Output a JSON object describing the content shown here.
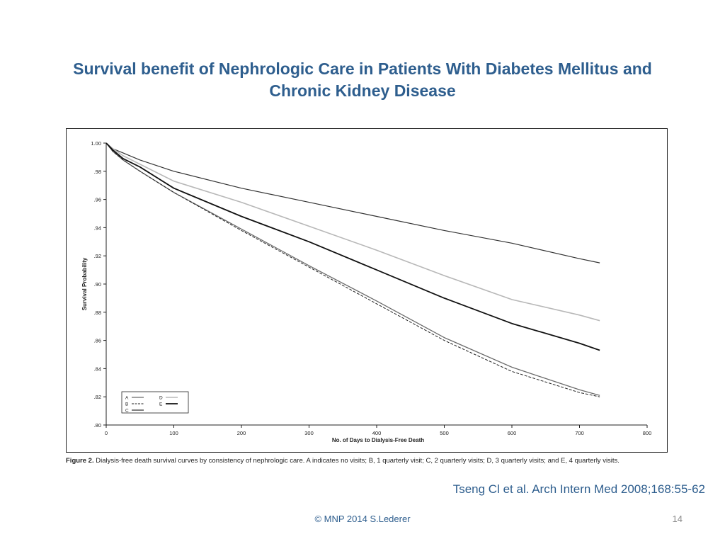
{
  "slide": {
    "title": "Survival benefit of Nephrologic Care in Patients With Diabetes Mellitus and Chronic Kidney Disease",
    "citation": "Tseng Cl et al. Arch Intern Med 2008;168:55-62",
    "footer": "© MNP 2014 S.Lederer",
    "page_number": "14"
  },
  "figure": {
    "caption_label": "Figure 2.",
    "caption_text": "Dialysis-free death survival curves by consistency of nephrologic care. A indicates no visits; B, 1 quarterly visit; C, 2 quarterly visits; D, 3 quarterly visits; and E, 4 quarterly visits."
  },
  "chart_data": {
    "type": "line",
    "xlabel": "No. of Days to Dialysis-Free Death",
    "ylabel": "Survival Probability",
    "xlim": [
      0,
      800
    ],
    "ylim": [
      0.8,
      1.0
    ],
    "x_ticks": [
      "0",
      "100",
      "200",
      "300",
      "400",
      "500",
      "600",
      "700",
      "800"
    ],
    "y_ticks": [
      ".80",
      ".82",
      ".84",
      ".86",
      ".88",
      ".90",
      ".92",
      ".94",
      ".96",
      ".98",
      "1.00"
    ],
    "legend_position": "bottom-left",
    "x": [
      0,
      10,
      25,
      50,
      100,
      200,
      300,
      400,
      500,
      600,
      700,
      730
    ],
    "series": [
      {
        "name": "A",
        "style": "solid-gray",
        "color": "#6b6b6b",
        "values": [
          1.0,
          0.994,
          0.988,
          0.98,
          0.965,
          0.939,
          0.913,
          0.888,
          0.862,
          0.841,
          0.825,
          0.821
        ]
      },
      {
        "name": "B",
        "style": "dashed-black",
        "color": "#222222",
        "values": [
          1.0,
          0.994,
          0.988,
          0.98,
          0.965,
          0.938,
          0.912,
          0.886,
          0.86,
          0.838,
          0.823,
          0.82
        ]
      },
      {
        "name": "C",
        "style": "solid-black",
        "color": "#333333",
        "values": [
          1.0,
          0.996,
          0.993,
          0.988,
          0.98,
          0.968,
          0.958,
          0.948,
          0.938,
          0.929,
          0.918,
          0.915
        ]
      },
      {
        "name": "D",
        "style": "solid-light-gray",
        "color": "#b8b8b8",
        "values": [
          1.0,
          0.996,
          0.991,
          0.985,
          0.973,
          0.958,
          0.941,
          0.924,
          0.906,
          0.889,
          0.878,
          0.874
        ]
      },
      {
        "name": "E",
        "style": "solid-thick-black",
        "color": "#111111",
        "values": [
          1.0,
          0.995,
          0.989,
          0.983,
          0.968,
          0.948,
          0.93,
          0.91,
          0.89,
          0.872,
          0.858,
          0.853
        ]
      }
    ]
  }
}
